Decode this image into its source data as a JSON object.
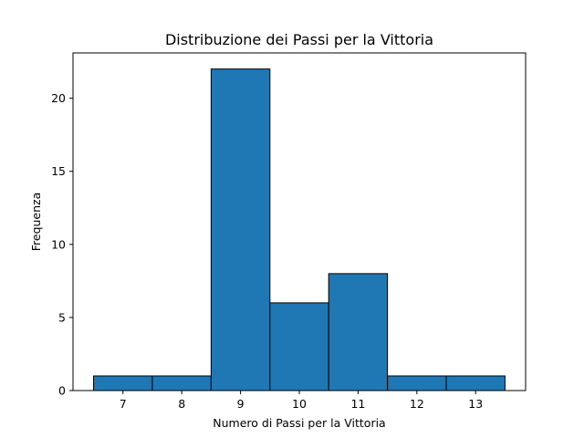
{
  "chart_data": {
    "type": "bar",
    "title": "Distribuzione dei Passi per la Vittoria",
    "xlabel": "Numero di Passi per la Vittoria",
    "ylabel": "Frequenza",
    "categories": [
      "7",
      "8",
      "9",
      "10",
      "11",
      "12",
      "13"
    ],
    "x": [
      7,
      8,
      9,
      10,
      11,
      12,
      13
    ],
    "values": [
      1,
      1,
      22,
      6,
      8,
      1,
      1
    ],
    "bin_width": 1,
    "xlim": [
      6.15,
      13.85
    ],
    "ylim": [
      0,
      23.1
    ],
    "xticks": [
      7,
      8,
      9,
      10,
      11,
      12,
      13
    ],
    "yticks": [
      0,
      5,
      10,
      15,
      20
    ],
    "grid": false,
    "legend": "none",
    "colors": {
      "bar_fill": "#1f77b4",
      "bar_edge": "#000000"
    }
  }
}
